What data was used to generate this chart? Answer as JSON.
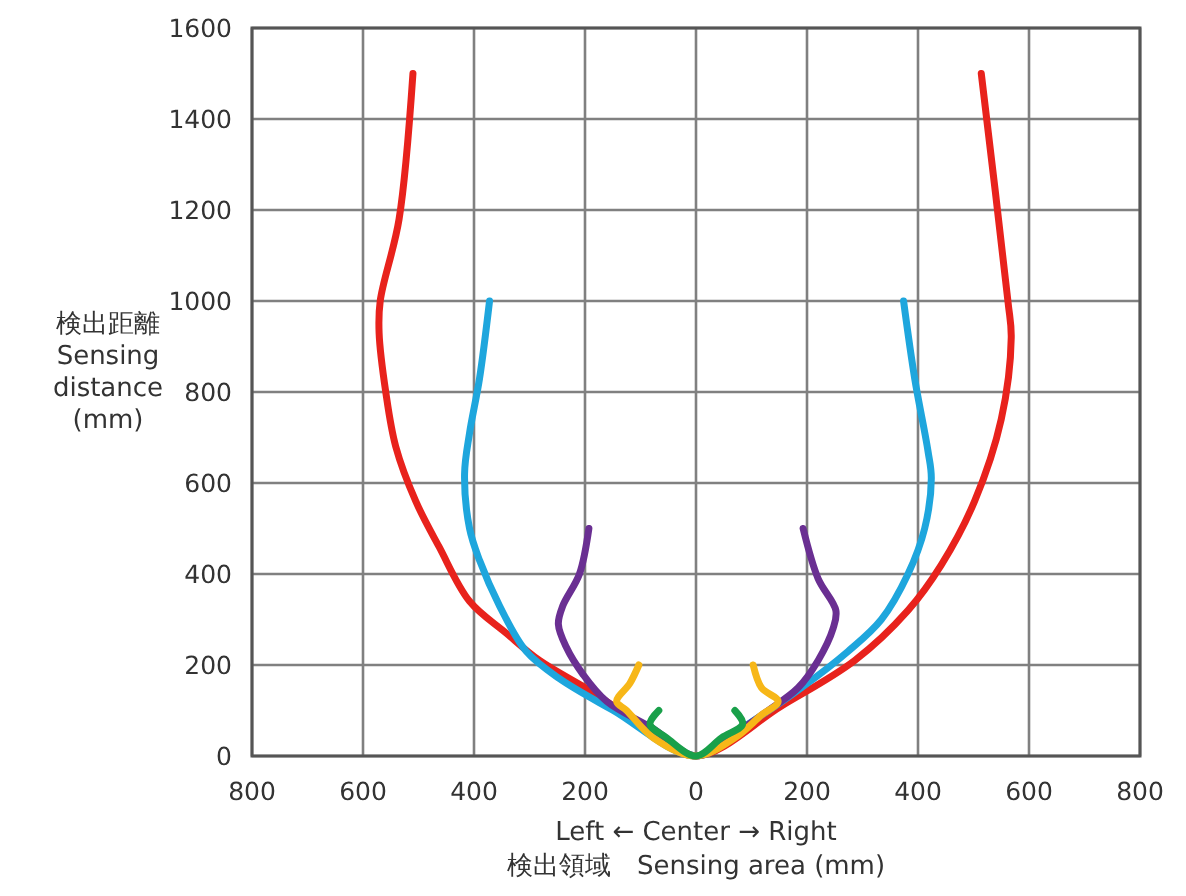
{
  "chart_data": {
    "type": "line",
    "xlabel": "Left ← Center → Right\n検出領域　Sensing area (mm)",
    "ylabel": "検出距離\nSensing\ndistance\n(mm)",
    "xlim": [
      -800,
      800
    ],
    "xticks": [
      {
        "value": -800,
        "label": "800"
      },
      {
        "value": -600,
        "label": "600"
      },
      {
        "value": -400,
        "label": "400"
      },
      {
        "value": -200,
        "label": "200"
      },
      0,
      200,
      400,
      600,
      800
    ],
    "ylim": [
      0,
      1600
    ],
    "yticks": [
      0,
      200,
      400,
      600,
      800,
      1000,
      1200,
      1400,
      1600
    ],
    "grid": true,
    "line_style": "solid",
    "series": [
      {
        "color": "#e8221c",
        "x": [
          -510,
          -535,
          -569,
          -571,
          -559,
          -541,
          -505,
          -463,
          -408,
          -342,
          -282,
          -186,
          -101,
          0,
          154,
          286,
          382,
          442,
          502,
          550,
          568,
          562,
          514
        ],
        "values": [
          1500,
          1180,
          1000,
          930,
          800,
          680,
          560,
          460,
          340,
          270,
          210,
          140,
          70,
          0,
          110,
          210,
          320,
          420,
          560,
          740,
          920,
          1000,
          1500
        ]
      },
      {
        "color": "#1ea6dd",
        "x": [
          -372,
          -390,
          -408,
          -417,
          -408,
          -390,
          -354,
          -306,
          -246,
          -149,
          0,
          94,
          190,
          274,
          334,
          382,
          412,
          424,
          418,
          394,
          374
        ],
        "values": [
          1000,
          830,
          710,
          620,
          500,
          430,
          330,
          230,
          170,
          100,
          0,
          70,
          150,
          230,
          300,
          400,
          500,
          610,
          670,
          830,
          1000
        ]
      },
      {
        "color": "#6a2f92",
        "x": [
          -193,
          -210,
          -240,
          -248,
          -234,
          -204,
          -161,
          -77,
          0,
          58,
          130,
          184,
          220,
          247,
          252,
          220,
          193
        ],
        "values": [
          500,
          400,
          330,
          290,
          240,
          180,
          120,
          60,
          0,
          40,
          100,
          150,
          210,
          280,
          320,
          390,
          500
        ]
      },
      {
        "color": "#f7b718",
        "x": [
          -103,
          -119,
          -143,
          -125,
          -77,
          0,
          70,
          118,
          148,
          118,
          103
        ],
        "values": [
          200,
          160,
          120,
          100,
          40,
          0,
          40,
          90,
          120,
          150,
          200
        ]
      },
      {
        "color": "#19a04a",
        "x": [
          -67,
          -83,
          -53,
          0,
          46,
          84,
          70
        ],
        "values": [
          100,
          70,
          40,
          0,
          40,
          70,
          100
        ]
      }
    ]
  }
}
